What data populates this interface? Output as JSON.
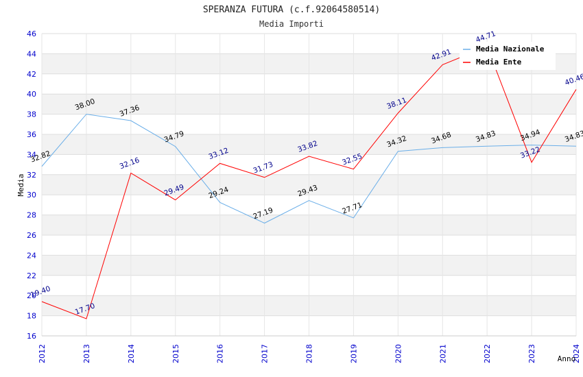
{
  "chart_data": {
    "type": "line",
    "title": "SPERANZA FUTURA (c.f.92064580514)",
    "subtitle": "Media Importi",
    "xlabel": "Anno",
    "ylabel": "Media",
    "ylim": [
      16,
      46
    ],
    "yticks": [
      "16",
      "18",
      "20",
      "22",
      "24",
      "26",
      "28",
      "30",
      "32",
      "34",
      "36",
      "38",
      "40",
      "42",
      "44",
      "46"
    ],
    "categories": [
      "2012",
      "2013",
      "2014",
      "2015",
      "2016",
      "2017",
      "2018",
      "2019",
      "2020",
      "2021",
      "2022",
      "2023",
      "2024"
    ],
    "series": [
      {
        "name": "Media Nazionale",
        "color": "#6aaee8",
        "label_color": "#000000",
        "values": [
          32.82,
          38.0,
          37.36,
          34.79,
          29.24,
          27.19,
          29.43,
          27.71,
          34.32,
          34.68,
          34.83,
          34.94,
          34.83
        ],
        "labels": [
          "32.82",
          "38.00",
          "37.36",
          "34.79",
          "29.24",
          "27.19",
          "29.43",
          "27.71",
          "34.32",
          "34.68",
          "34.83",
          "34.94",
          "34.83"
        ]
      },
      {
        "name": "Media Ente",
        "color": "#ff0000",
        "label_color": "#00008b",
        "values": [
          19.4,
          17.7,
          32.16,
          29.49,
          33.12,
          31.73,
          33.82,
          32.55,
          38.11,
          42.91,
          44.71,
          33.22,
          40.46
        ],
        "labels": [
          "19.40",
          "17.70",
          "32.16",
          "29.49",
          "33.12",
          "31.73",
          "33.82",
          "32.55",
          "38.11",
          "42.91",
          "44.71",
          "33.22",
          "40.46"
        ]
      }
    ],
    "grid": true,
    "legend_position": "top-right"
  }
}
